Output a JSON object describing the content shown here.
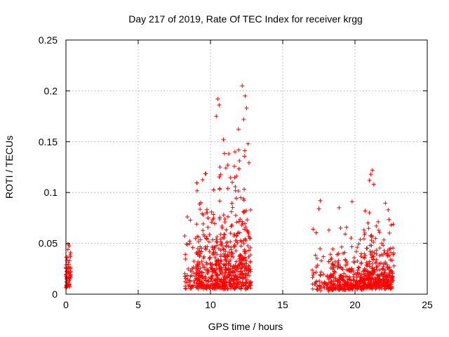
{
  "chart_data": {
    "type": "scatter",
    "title": "Day 217 of 2019, Rate Of TEC Index for receiver krgg",
    "xlabel": "GPS time / hours",
    "ylabel": "ROTI / TECUs",
    "xlim": [
      0,
      25
    ],
    "ylim": [
      0,
      0.25
    ],
    "grid": true,
    "xticks": [
      0,
      5,
      10,
      15,
      20,
      25
    ],
    "xtick_labels": [
      "0",
      "5",
      "10",
      "15",
      "20",
      "25"
    ],
    "yticks": [
      0,
      0.05,
      0.1,
      0.15,
      0.2,
      0.25
    ],
    "ytick_labels": [
      "0",
      "0.05",
      "0.1",
      "0.15",
      "0.2",
      "0.25"
    ],
    "marker": "+",
    "series": [
      {
        "name": "ROTI",
        "color": "#ff0000",
        "clusters": [
          {
            "x_range": [
              0.0,
              0.35
            ],
            "count": 60,
            "y_typ": 0.006,
            "y_spread": 0.022,
            "y_max": 0.049
          },
          {
            "x_range": [
              8.2,
              9.0
            ],
            "count": 45,
            "y_typ": 0.005,
            "y_spread": 0.018,
            "y_max": 0.076
          },
          {
            "x_range": [
              9.0,
              12.8
            ],
            "count": 650,
            "y_typ": 0.005,
            "y_spread": 0.03,
            "y_max": 0.205
          },
          {
            "x_range": [
              17.0,
              18.3
            ],
            "count": 60,
            "y_typ": 0.003,
            "y_spread": 0.012,
            "y_max": 0.092
          },
          {
            "x_range": [
              18.3,
              20.6
            ],
            "count": 260,
            "y_typ": 0.004,
            "y_spread": 0.012,
            "y_max": 0.091
          },
          {
            "x_range": [
              20.6,
              22.7
            ],
            "count": 320,
            "y_typ": 0.005,
            "y_spread": 0.016,
            "y_max": 0.122
          }
        ],
        "notable_points": [
          {
            "x": 12.2,
            "y": 0.205
          },
          {
            "x": 12.4,
            "y": 0.195
          },
          {
            "x": 12.5,
            "y": 0.183
          },
          {
            "x": 10.5,
            "y": 0.192
          },
          {
            "x": 10.6,
            "y": 0.186
          },
          {
            "x": 10.4,
            "y": 0.175
          },
          {
            "x": 12.3,
            "y": 0.172
          },
          {
            "x": 10.9,
            "y": 0.152
          },
          {
            "x": 12.6,
            "y": 0.148
          },
          {
            "x": 11.7,
            "y": 0.14
          },
          {
            "x": 11.2,
            "y": 0.127
          },
          {
            "x": 8.4,
            "y": 0.076
          },
          {
            "x": 21.2,
            "y": 0.122
          },
          {
            "x": 21.1,
            "y": 0.118
          },
          {
            "x": 21.0,
            "y": 0.112
          },
          {
            "x": 21.3,
            "y": 0.108
          },
          {
            "x": 17.6,
            "y": 0.092
          },
          {
            "x": 17.5,
            "y": 0.084
          },
          {
            "x": 18.9,
            "y": 0.085
          },
          {
            "x": 19.8,
            "y": 0.091
          },
          {
            "x": 20.7,
            "y": 0.082
          },
          {
            "x": 21.0,
            "y": 0.08
          },
          {
            "x": 22.3,
            "y": 0.083
          },
          {
            "x": 17.1,
            "y": 0.064
          },
          {
            "x": 18.2,
            "y": 0.063
          },
          {
            "x": 19.0,
            "y": 0.065
          },
          {
            "x": 22.5,
            "y": 0.068
          },
          {
            "x": 20.9,
            "y": 0.07
          },
          {
            "x": 0.15,
            "y": 0.049
          },
          {
            "x": 8.55,
            "y": 0.05
          }
        ]
      }
    ]
  }
}
